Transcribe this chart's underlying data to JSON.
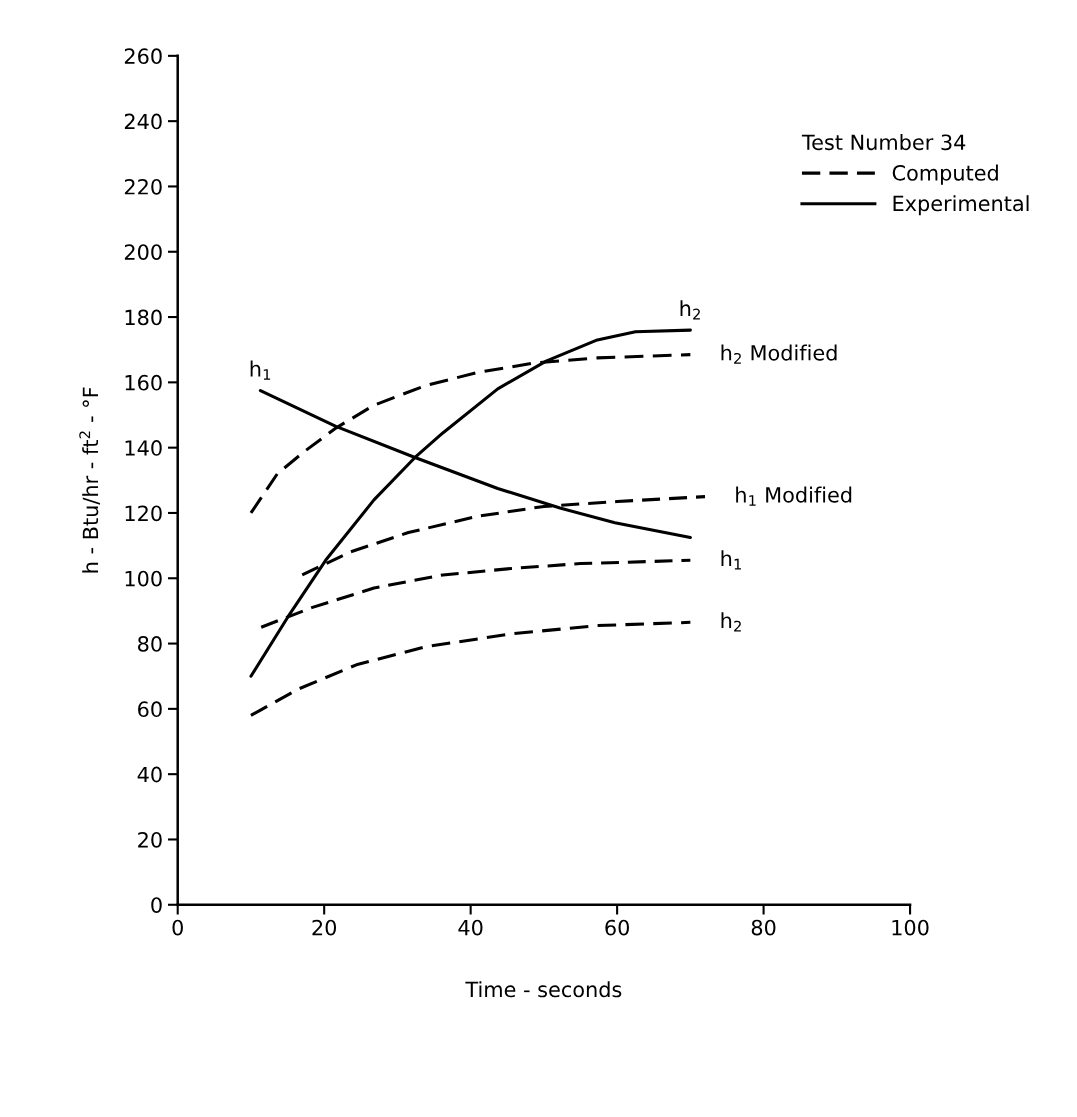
{
  "chart_data": {
    "type": "line",
    "xlabel": "Time - seconds",
    "ylabel": "h - Btu/hr - ft$^{2}$ - °F",
    "legend_title": "Test Number 34",
    "legend": "top right",
    "grid": false,
    "marker": "none",
    "xlim": [
      0,
      100
    ],
    "xticks": [
      0,
      20,
      40,
      60,
      80,
      100
    ],
    "ylim": [
      0,
      260
    ],
    "yticks": [
      0,
      20,
      40,
      60,
      80,
      100,
      120,
      140,
      160,
      180,
      200,
      220,
      240,
      260
    ],
    "annotations": [
      "Computed",
      "Experimental"
    ],
    "series": [
      {
        "name": "h$_{2}$ Modified",
        "color": "#000000",
        "line_style": "dashed",
        "x": [
          10,
          13.6,
          17.4,
          21.6,
          26.8,
          33.8,
          40.9,
          48.9,
          57.3,
          70
        ],
        "values": [
          120,
          132,
          139,
          146,
          153,
          159,
          163,
          166,
          167.5,
          168.5
        ]
      },
      {
        "name": "h$_{1}$ Modified",
        "color": "#000000",
        "line_style": "dashed",
        "x": [
          17,
          23.5,
          31.5,
          41,
          50,
          60,
          72
        ],
        "values": [
          101,
          108,
          114,
          119,
          122,
          123.5,
          125
        ]
      },
      {
        "name": "h$_{1}$",
        "color": "#000000",
        "line_style": "dashed",
        "x": [
          11.4,
          18.3,
          26.8,
          36.2,
          45.6,
          55,
          70
        ],
        "values": [
          85,
          91,
          97,
          101,
          103,
          104.5,
          105.5
        ]
      },
      {
        "name": "h$_{2}$",
        "color": "#000000",
        "line_style": "dashed",
        "x": [
          10,
          16.4,
          24.4,
          33.8,
          45.6,
          57.3,
          70
        ],
        "values": [
          58,
          66,
          73.5,
          79,
          83,
          85.5,
          86.5
        ]
      },
      {
        "name": "h$_{2}$",
        "color": "#000000",
        "line_style": "solid",
        "x": [
          10,
          15,
          20.2,
          26.8,
          32.4,
          36.2,
          43.7,
          50.3,
          57.3,
          62.5,
          70
        ],
        "values": [
          70,
          88,
          105.5,
          124,
          137,
          144.5,
          158,
          166.5,
          173,
          175.5,
          176
        ]
      },
      {
        "name": "h$_{1}$",
        "color": "#000000",
        "line_style": "solid",
        "x": [
          11.3,
          21.6,
          32.4,
          43.7,
          52.2,
          59.7,
          70
        ],
        "values": [
          157.5,
          146.5,
          137,
          127.5,
          121.5,
          117,
          112.5
        ]
      }
    ]
  }
}
